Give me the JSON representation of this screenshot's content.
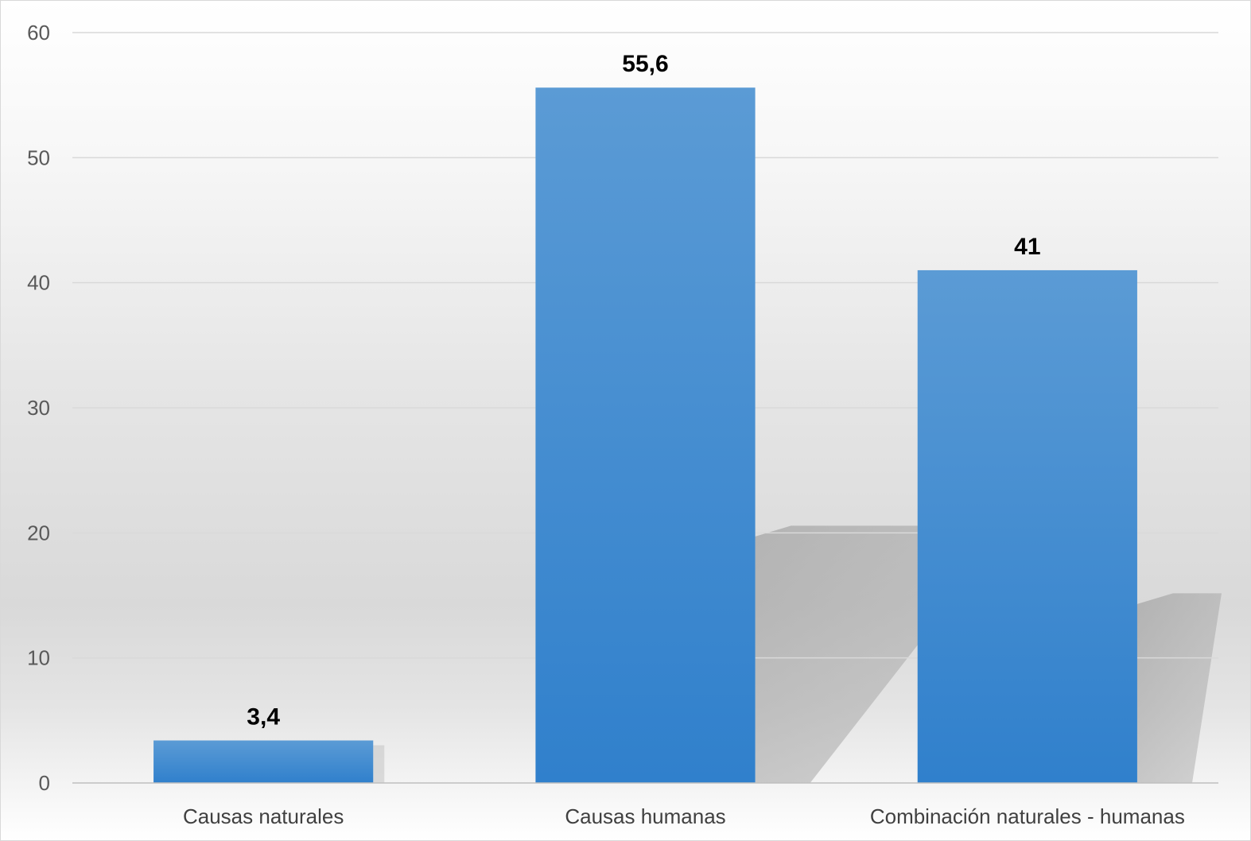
{
  "chart_data": {
    "type": "bar",
    "title": "",
    "xlabel": "",
    "ylabel": "",
    "categories": [
      "Causas naturales",
      "Causas humanas",
      "Combinación naturales - humanas"
    ],
    "values": [
      3.4,
      55.6,
      41
    ],
    "data_labels": [
      "3,4",
      "55,6",
      "41"
    ],
    "ylim": [
      0,
      60
    ],
    "yticks": [
      0,
      10,
      20,
      30,
      40,
      50,
      60
    ],
    "grid": true,
    "legend": "none",
    "colors": {
      "bar_top": "#5b9bd5",
      "bar_bottom": "#3080cc",
      "shadow": "#aaaaaa"
    }
  }
}
